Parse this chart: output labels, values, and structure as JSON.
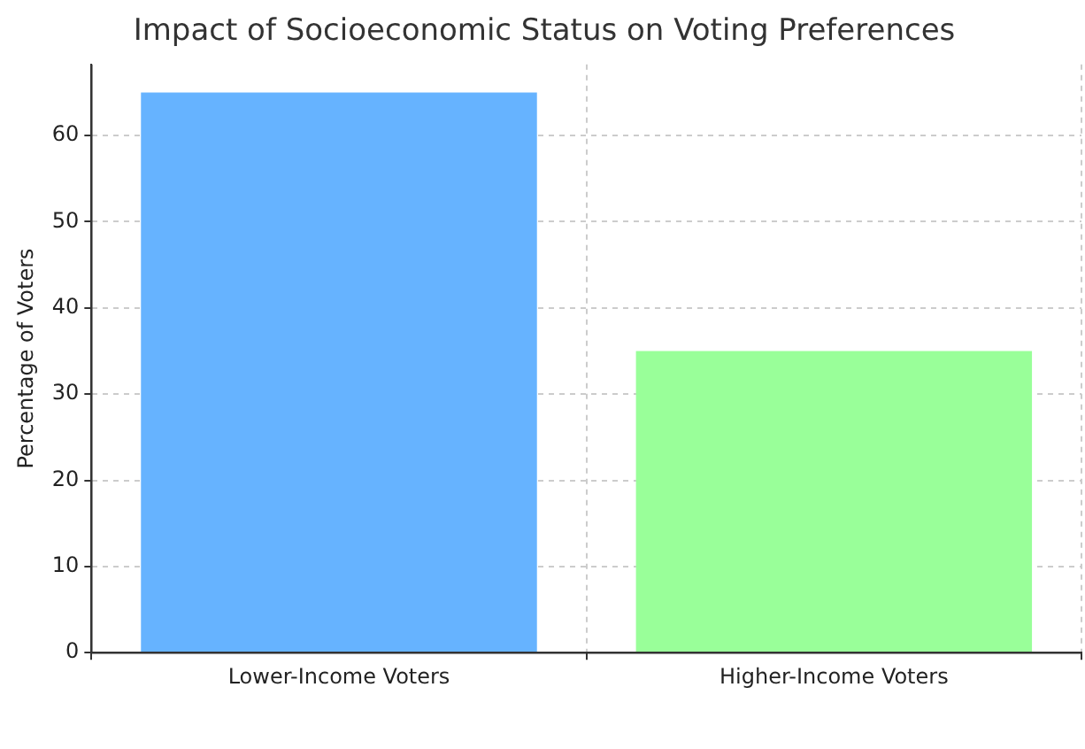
{
  "chart_data": {
    "type": "bar",
    "title": "Impact of Socioeconomic Status on Voting Preferences",
    "ylabel": "Percentage of Voters",
    "categories": [
      "Lower-Income Voters",
      "Higher-Income Voters"
    ],
    "values": [
      65,
      35
    ],
    "colors": [
      "#66b3ff",
      "#99ff99"
    ],
    "ylim": [
      0,
      68.25
    ],
    "yticks": [
      0,
      10,
      20,
      30,
      40,
      50,
      60
    ],
    "grid": true
  }
}
